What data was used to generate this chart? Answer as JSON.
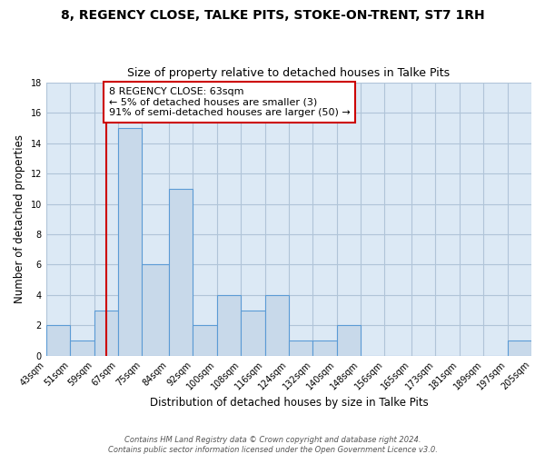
{
  "title": "8, REGENCY CLOSE, TALKE PITS, STOKE-ON-TRENT, ST7 1RH",
  "subtitle": "Size of property relative to detached houses in Talke Pits",
  "xlabel": "Distribution of detached houses by size in Talke Pits",
  "ylabel": "Number of detached properties",
  "footnote1": "Contains HM Land Registry data © Crown copyright and database right 2024.",
  "footnote2": "Contains public sector information licensed under the Open Government Licence v3.0.",
  "bin_edges": [
    43,
    51,
    59,
    67,
    75,
    84,
    92,
    100,
    108,
    116,
    124,
    132,
    140,
    148,
    156,
    165,
    173,
    181,
    189,
    197,
    205
  ],
  "bar_heights": [
    2,
    1,
    3,
    15,
    6,
    11,
    2,
    4,
    3,
    4,
    1,
    1,
    2,
    0,
    0,
    0,
    0,
    0,
    0,
    1
  ],
  "bar_facecolor": "#c8d9ea",
  "bar_edgecolor": "#5b9bd5",
  "plot_bg_color": "#dce9f5",
  "red_line_x": 63,
  "red_line_color": "#cc0000",
  "annotation_text": "8 REGENCY CLOSE: 63sqm\n← 5% of detached houses are smaller (3)\n91% of semi-detached houses are larger (50) →",
  "annotation_box_edgecolor": "#cc0000",
  "annotation_box_facecolor": "#ffffff",
  "ylim": [
    0,
    18
  ],
  "yticks": [
    0,
    2,
    4,
    6,
    8,
    10,
    12,
    14,
    16,
    18
  ],
  "background_color": "#ffffff",
  "grid_color": "#b0c4d8",
  "title_fontsize": 10,
  "subtitle_fontsize": 9,
  "axis_label_fontsize": 8.5,
  "tick_fontsize": 7,
  "annotation_fontsize": 8
}
